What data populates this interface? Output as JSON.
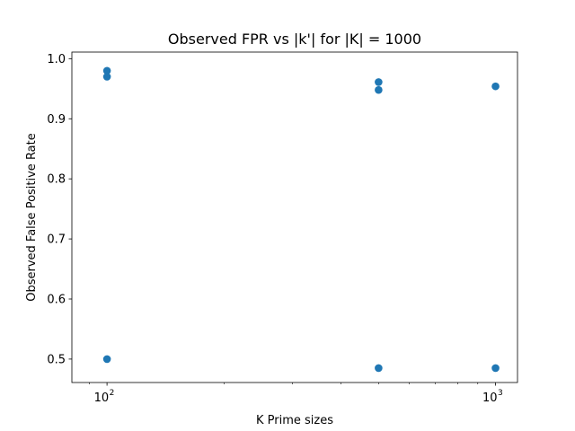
{
  "chart_data": {
    "type": "scatter",
    "title": "Observed FPR vs |k'| for |K| = 1000",
    "xlabel": "K Prime sizes",
    "ylabel": "Observed False Positive Rate",
    "x_scale": "log",
    "xlim": [
      81.2,
      1139
    ],
    "ylim": [
      0.461,
      1.011
    ],
    "grid": false,
    "marker_color": "#1f77b4",
    "x_ticks": [
      {
        "value": 100,
        "base": "10",
        "exp": "2"
      },
      {
        "value": 1000,
        "base": "10",
        "exp": "3"
      }
    ],
    "y_ticks": [
      {
        "value": 0.5,
        "label": "0.5"
      },
      {
        "value": 0.6,
        "label": "0.6"
      },
      {
        "value": 0.7,
        "label": "0.7"
      },
      {
        "value": 0.8,
        "label": "0.8"
      },
      {
        "value": 0.9,
        "label": "0.9"
      },
      {
        "value": 1.0,
        "label": "1.0"
      }
    ],
    "points": [
      {
        "x": 100,
        "y": 0.98
      },
      {
        "x": 100,
        "y": 0.97
      },
      {
        "x": 100,
        "y": 0.5
      },
      {
        "x": 500,
        "y": 0.961
      },
      {
        "x": 500,
        "y": 0.948
      },
      {
        "x": 500,
        "y": 0.485
      },
      {
        "x": 1000,
        "y": 0.954
      },
      {
        "x": 1000,
        "y": 0.485
      }
    ]
  }
}
